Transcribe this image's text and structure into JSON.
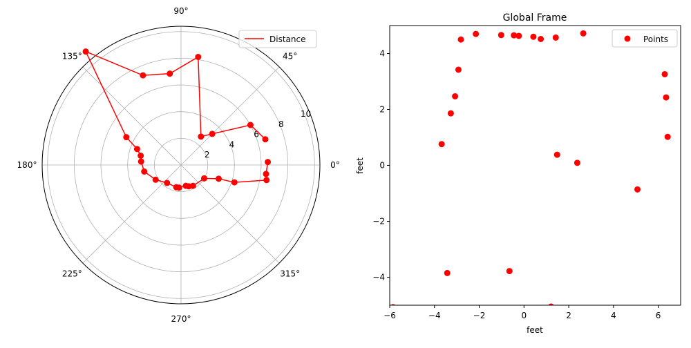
{
  "chart_data": [
    {
      "type": "line",
      "projection": "polar",
      "theta_unit": "degrees",
      "rlim": [
        0,
        10.4
      ],
      "r_ticks": [
        2,
        4,
        6,
        8,
        10
      ],
      "r_tick_labels": [
        "2",
        "4",
        "6",
        "8",
        "10"
      ],
      "theta_ticks": [
        0,
        45,
        90,
        135,
        180,
        225,
        270,
        315
      ],
      "theta_tick_labels": [
        "0°",
        "45°",
        "90°",
        "135°",
        "180°",
        "225°",
        "270°",
        "315°"
      ],
      "grid": true,
      "legend_position": "top-right",
      "color": "#ff0000",
      "series": [
        {
          "name": "Distance",
          "points": [
            {
              "theta": 17,
              "r": 6.6
            },
            {
              "theta": 30,
              "r": 6.0
            },
            {
              "theta": 45,
              "r": 3.3
            },
            {
              "theta": 55,
              "r": 2.6
            },
            {
              "theta": 81,
              "r": 8.2
            },
            {
              "theta": 97,
              "r": 6.9
            },
            {
              "theta": 113,
              "r": 7.3
            },
            {
              "theta": 130,
              "r": 11.1
            },
            {
              "theta": 153,
              "r": 4.6
            },
            {
              "theta": 160,
              "r": 3.5
            },
            {
              "theta": 167,
              "r": 3.1
            },
            {
              "theta": 175,
              "r": 3.0
            },
            {
              "theta": 190,
              "r": 2.8
            },
            {
              "theta": 210,
              "r": 2.2
            },
            {
              "theta": 232,
              "r": 1.7
            },
            {
              "theta": 258,
              "r": 1.7
            },
            {
              "theta": 265,
              "r": 1.7
            },
            {
              "theta": 283,
              "r": 1.6
            },
            {
              "theta": 290,
              "r": 1.7
            },
            {
              "theta": 300,
              "r": 1.8
            },
            {
              "theta": 330,
              "r": 2.0
            },
            {
              "theta": 340,
              "r": 3.0
            },
            {
              "theta": 342,
              "r": 4.2
            },
            {
              "theta": 350,
              "r": 6.5
            },
            {
              "theta": 354,
              "r": 6.4
            },
            {
              "theta": 2,
              "r": 6.5
            }
          ]
        }
      ]
    },
    {
      "type": "scatter",
      "title": "Global Frame",
      "xlabel": "feet",
      "ylabel": "feet",
      "xlim": [
        -6,
        7
      ],
      "ylim": [
        -5,
        5
      ],
      "x_ticks": [
        -6,
        -4,
        -2,
        0,
        2,
        4,
        6
      ],
      "x_tick_labels": [
        "−6",
        "−4",
        "−2",
        "0",
        "2",
        "4",
        "6"
      ],
      "y_ticks": [
        -4,
        -2,
        0,
        2,
        4
      ],
      "y_tick_labels": [
        "−4",
        "−2",
        "0",
        "2",
        "4"
      ],
      "grid": false,
      "legend_position": "top-right",
      "color": "#ff0000",
      "series": [
        {
          "name": "Points",
          "points": [
            [
              6.42,
              1.02
            ],
            [
              6.35,
              2.43
            ],
            [
              6.29,
              3.26
            ],
            [
              5.07,
              -0.86
            ],
            [
              2.38,
              0.09
            ],
            [
              1.48,
              0.38
            ],
            [
              2.65,
              4.72
            ],
            [
              1.42,
              4.57
            ],
            [
              0.75,
              4.52
            ],
            [
              0.42,
              4.6
            ],
            [
              -0.23,
              4.63
            ],
            [
              -0.45,
              4.65
            ],
            [
              -1.02,
              4.66
            ],
            [
              -2.15,
              4.7
            ],
            [
              -2.82,
              4.5
            ],
            [
              -2.93,
              3.42
            ],
            [
              -3.08,
              2.47
            ],
            [
              -3.27,
              1.86
            ],
            [
              -3.68,
              0.76
            ],
            [
              -3.43,
              -3.85
            ],
            [
              -0.65,
              -3.78
            ],
            [
              1.21,
              -5.05
            ],
            [
              -5.85,
              -5.07
            ]
          ]
        }
      ]
    }
  ]
}
